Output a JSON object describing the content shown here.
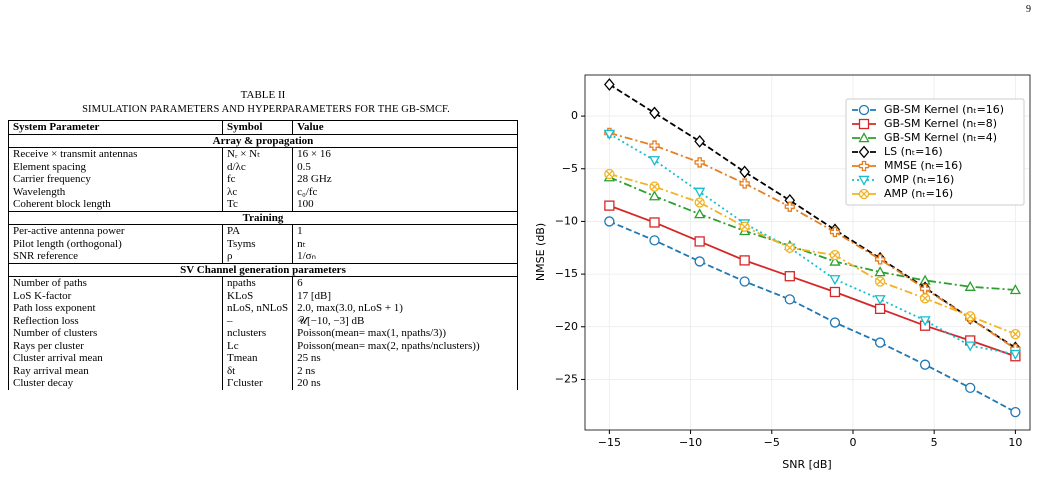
{
  "page_number": "9",
  "caption": {
    "label": "TABLE II",
    "text": "SIMULATION PARAMETERS AND HYPERPARAMETERS FOR THE GB-SMCF."
  },
  "table": {
    "header": [
      "System Parameter",
      "Symbol",
      "Value"
    ],
    "sections": [
      {
        "title": "Array & propagation",
        "rows": [
          [
            "Receive × transmit antennas",
            "Nᵣ × Nₜ",
            "16 × 16"
          ],
          [
            "Element spacing",
            "d/λc",
            "0.5"
          ],
          [
            "Carrier frequency",
            "fc",
            "28 GHz"
          ],
          [
            "Wavelength",
            "λc",
            "c₀/fc"
          ],
          [
            "Coherent block length",
            "Tc",
            "100"
          ]
        ]
      },
      {
        "title": "Training",
        "rows": [
          [
            "Per-active antenna power",
            "PA",
            "1"
          ],
          [
            "Pilot length (orthogonal)",
            "Tsyms",
            "nₜ"
          ],
          [
            "SNR reference",
            "ρ",
            "1/σₙ"
          ]
        ]
      },
      {
        "title": "SV Channel generation parameters",
        "rows": [
          [
            "Number of paths",
            "npaths",
            "6"
          ],
          [
            "LoS K-factor",
            "KLoS",
            "17 [dB]"
          ],
          [
            "Path loss exponent",
            "nLoS, nNLoS",
            "2.0, max(3.0, nLoS + 1)"
          ],
          [
            "Reflection loss",
            "–",
            "𝒰[−10, −3] dB"
          ],
          [
            "Number of clusters",
            "nclusters",
            "Poisson(mean= max(1, npaths/3))"
          ],
          [
            "Rays per cluster",
            "Lc",
            "Poisson(mean= max(2, npaths/nclusters))"
          ],
          [
            "Cluster arrival mean",
            "Tmean",
            "25 ns"
          ],
          [
            "Ray arrival mean",
            "δt",
            "2 ns"
          ],
          [
            "Cluster decay",
            "Γcluster",
            "20 ns"
          ]
        ]
      }
    ]
  },
  "chart_data": {
    "type": "line",
    "xlabel": "SNR [dB]",
    "ylabel": "NMSE (dB)",
    "x": [
      -15,
      -12.22,
      -9.44,
      -6.67,
      -3.89,
      -1.11,
      1.67,
      4.44,
      7.22,
      10
    ],
    "xlim": [
      -16.5,
      10.9
    ],
    "ylim": [
      -29.8,
      3.9
    ],
    "xticks": [
      {
        "value": -15,
        "label": "−15"
      },
      {
        "value": -10,
        "label": "−10"
      },
      {
        "value": -5,
        "label": "−5"
      },
      0,
      5,
      10
    ],
    "yticks": [
      0,
      {
        "value": -5,
        "label": "−5"
      },
      {
        "value": -10,
        "label": "−10"
      },
      {
        "value": -15,
        "label": "−15"
      },
      {
        "value": -20,
        "label": "−20"
      },
      {
        "value": -25,
        "label": "−25"
      }
    ],
    "grid": true,
    "legend": "upper right",
    "series": [
      {
        "name": "GB-SM Kernel (nₜ=16)",
        "color": "#1f77b4",
        "linestyle": "dashed",
        "marker": "circle",
        "values": [
          -10,
          -11.8,
          -13.8,
          -15.7,
          -17.4,
          -19.6,
          -21.5,
          -23.6,
          -25.8,
          -28.1
        ]
      },
      {
        "name": "GB-SM Kernel (nₜ=8)",
        "color": "#d62728",
        "linestyle": "solid",
        "marker": "square",
        "values": [
          -8.5,
          -10.1,
          -11.9,
          -13.7,
          -15.2,
          -16.7,
          -18.3,
          -19.9,
          -21.3,
          -22.8
        ]
      },
      {
        "name": "GB-SM Kernel (nₜ=4)",
        "color": "#2ca02c",
        "linestyle": "dashdot",
        "marker": "triangle-up",
        "values": [
          -5.8,
          -7.6,
          -9.3,
          -10.9,
          -12.3,
          -13.8,
          -14.8,
          -15.6,
          -16.2,
          -16.5
        ]
      },
      {
        "name": "LS (nₜ=16)",
        "color": "#000000",
        "linestyle": "dashed",
        "marker": "diamond",
        "values": [
          3.0,
          0.3,
          -2.4,
          -5.3,
          -8.0,
          -10.8,
          -13.5,
          -16.3,
          -19.2,
          -22.0
        ]
      },
      {
        "name": "MMSE (nₜ=16)",
        "color": "#e67e22",
        "linestyle": "dashdot",
        "marker": "plus",
        "values": [
          -1.6,
          -2.8,
          -4.4,
          -6.4,
          -8.6,
          -11.0,
          -13.6,
          -16.4,
          -19.2,
          -22.1
        ]
      },
      {
        "name": "OMP (nₜ=16)",
        "color": "#17becf",
        "linestyle": "dotted",
        "marker": "triangle-down",
        "values": [
          -1.7,
          -4.2,
          -7.2,
          -10.2,
          -12.5,
          -15.5,
          -17.4,
          -19.4,
          -21.8,
          -22.6
        ]
      },
      {
        "name": "AMP (nₜ=16)",
        "color": "#f0b323",
        "linestyle": "dashdot",
        "marker": "x-circle",
        "values": [
          -5.5,
          -6.7,
          -8.2,
          -10.5,
          -12.5,
          -13.2,
          -15.7,
          -17.3,
          -19.0,
          -20.7
        ]
      }
    ]
  }
}
